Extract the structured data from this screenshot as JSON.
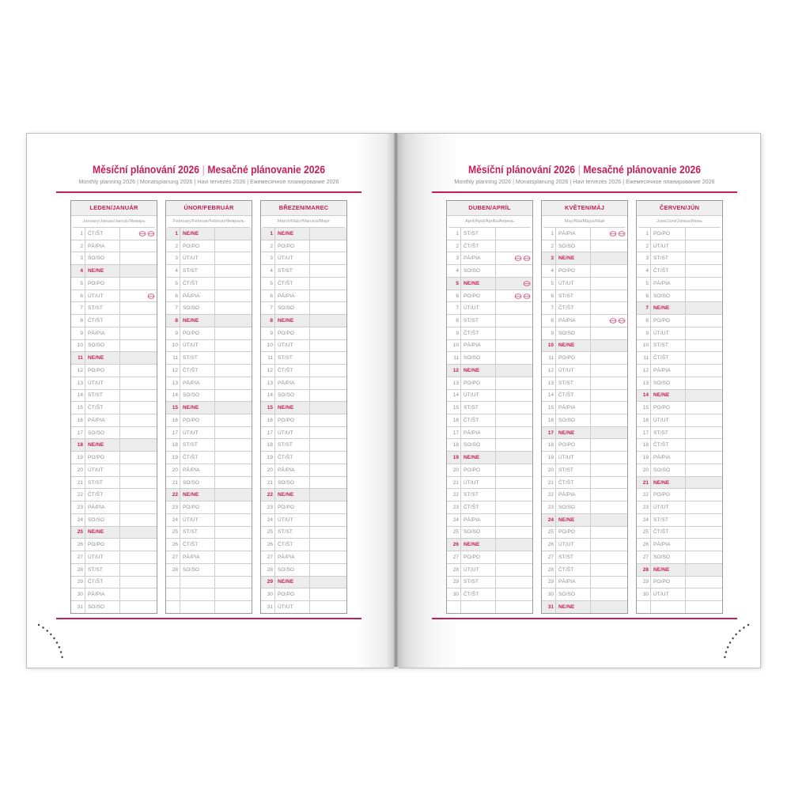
{
  "header": {
    "title_cz": "Měsíční plánování 2026",
    "title_divider": "|",
    "title_sk": "Mesačné plánovanie 2026",
    "subtitle": "Monthly planning 2026 | Monatsplanung 2026 | Havi tervezés 2026 | Ежемесячное планирование 2026"
  },
  "colors": {
    "accent": "#c41e56",
    "holiday_icon": "#d4537a",
    "sunday_row_bg": "#ececec",
    "grid_line": "#cdcdcd",
    "table_border": "#9b9b9b",
    "weekday_text": "#8d8d8d",
    "month_header_bg": "#efefef"
  },
  "day_abbreviations": {
    "monday": "PO/PO",
    "tuesday": "ÚT/UT",
    "wednesday": "ST/ST",
    "thursday": "ČT/ŠT",
    "friday": "PÁ/PIA",
    "saturday": "SO/SO",
    "sunday": "NE/NE"
  },
  "row_format": [
    "day_of_month",
    "day_abbreviation_cz_sk",
    "is_sunday",
    "holiday_icon_count"
  ],
  "months": [
    {
      "name": "LEDEN/JANUÁR",
      "subtitle": "January/Januar/Január/Январь",
      "filler_rows": 0,
      "rows": [
        [
          1,
          "ČT/ŠT",
          0,
          2
        ],
        [
          2,
          "PÁ/PIA",
          0,
          0
        ],
        [
          3,
          "SO/SO",
          0,
          0
        ],
        [
          4,
          "NE/NE",
          1,
          0
        ],
        [
          5,
          "PO/PO",
          0,
          0
        ],
        [
          6,
          "ÚT/UT",
          0,
          1
        ],
        [
          7,
          "ST/ST",
          0,
          0
        ],
        [
          8,
          "ČT/ŠT",
          0,
          0
        ],
        [
          9,
          "PÁ/PIA",
          0,
          0
        ],
        [
          10,
          "SO/SO",
          0,
          0
        ],
        [
          11,
          "NE/NE",
          1,
          0
        ],
        [
          12,
          "PO/PO",
          0,
          0
        ],
        [
          13,
          "ÚT/UT",
          0,
          0
        ],
        [
          14,
          "ST/ST",
          0,
          0
        ],
        [
          15,
          "ČT/ŠT",
          0,
          0
        ],
        [
          16,
          "PÁ/PIA",
          0,
          0
        ],
        [
          17,
          "SO/SO",
          0,
          0
        ],
        [
          18,
          "NE/NE",
          1,
          0
        ],
        [
          19,
          "PO/PO",
          0,
          0
        ],
        [
          20,
          "ÚT/UT",
          0,
          0
        ],
        [
          21,
          "ST/ST",
          0,
          0
        ],
        [
          22,
          "ČT/ŠT",
          0,
          0
        ],
        [
          23,
          "PÁ/PIA",
          0,
          0
        ],
        [
          24,
          "SO/SO",
          0,
          0
        ],
        [
          25,
          "NE/NE",
          1,
          0
        ],
        [
          26,
          "PO/PO",
          0,
          0
        ],
        [
          27,
          "ÚT/UT",
          0,
          0
        ],
        [
          28,
          "ST/ST",
          0,
          0
        ],
        [
          29,
          "ČT/ŠT",
          0,
          0
        ],
        [
          30,
          "PÁ/PIA",
          0,
          0
        ],
        [
          31,
          "SO/SO",
          0,
          0
        ]
      ]
    },
    {
      "name": "ÚNOR/FEBRUÁR",
      "subtitle": "February/Februar/Február/Февраль",
      "filler_rows": 3,
      "rows": [
        [
          1,
          "NE/NE",
          1,
          0
        ],
        [
          2,
          "PO/PO",
          0,
          0
        ],
        [
          3,
          "ÚT/UT",
          0,
          0
        ],
        [
          4,
          "ST/ST",
          0,
          0
        ],
        [
          5,
          "ČT/ŠT",
          0,
          0
        ],
        [
          6,
          "PÁ/PIA",
          0,
          0
        ],
        [
          7,
          "SO/SO",
          0,
          0
        ],
        [
          8,
          "NE/NE",
          1,
          0
        ],
        [
          9,
          "PO/PO",
          0,
          0
        ],
        [
          10,
          "ÚT/UT",
          0,
          0
        ],
        [
          11,
          "ST/ST",
          0,
          0
        ],
        [
          12,
          "ČT/ŠT",
          0,
          0
        ],
        [
          13,
          "PÁ/PIA",
          0,
          0
        ],
        [
          14,
          "SO/SO",
          0,
          0
        ],
        [
          15,
          "NE/NE",
          1,
          0
        ],
        [
          16,
          "PO/PO",
          0,
          0
        ],
        [
          17,
          "ÚT/UT",
          0,
          0
        ],
        [
          18,
          "ST/ST",
          0,
          0
        ],
        [
          19,
          "ČT/ŠT",
          0,
          0
        ],
        [
          20,
          "PÁ/PIA",
          0,
          0
        ],
        [
          21,
          "SO/SO",
          0,
          0
        ],
        [
          22,
          "NE/NE",
          1,
          0
        ],
        [
          23,
          "PO/PO",
          0,
          0
        ],
        [
          24,
          "ÚT/UT",
          0,
          0
        ],
        [
          25,
          "ST/ST",
          0,
          0
        ],
        [
          26,
          "ČT/ŠT",
          0,
          0
        ],
        [
          27,
          "PÁ/PIA",
          0,
          0
        ],
        [
          28,
          "SO/SO",
          0,
          0
        ]
      ]
    },
    {
      "name": "BŘEZEN/MAREC",
      "subtitle": "March/März/Március/Март",
      "filler_rows": 0,
      "rows": [
        [
          1,
          "NE/NE",
          1,
          0
        ],
        [
          2,
          "PO/PO",
          0,
          0
        ],
        [
          3,
          "ÚT/UT",
          0,
          0
        ],
        [
          4,
          "ST/ST",
          0,
          0
        ],
        [
          5,
          "ČT/ŠT",
          0,
          0
        ],
        [
          6,
          "PÁ/PIA",
          0,
          0
        ],
        [
          7,
          "SO/SO",
          0,
          0
        ],
        [
          8,
          "NE/NE",
          1,
          0
        ],
        [
          9,
          "PO/PO",
          0,
          0
        ],
        [
          10,
          "ÚT/UT",
          0,
          0
        ],
        [
          11,
          "ST/ST",
          0,
          0
        ],
        [
          12,
          "ČT/ŠT",
          0,
          0
        ],
        [
          13,
          "PÁ/PIA",
          0,
          0
        ],
        [
          14,
          "SO/SO",
          0,
          0
        ],
        [
          15,
          "NE/NE",
          1,
          0
        ],
        [
          16,
          "PO/PO",
          0,
          0
        ],
        [
          17,
          "ÚT/UT",
          0,
          0
        ],
        [
          18,
          "ST/ST",
          0,
          0
        ],
        [
          19,
          "ČT/ŠT",
          0,
          0
        ],
        [
          20,
          "PÁ/PIA",
          0,
          0
        ],
        [
          21,
          "SO/SO",
          0,
          0
        ],
        [
          22,
          "NE/NE",
          1,
          0
        ],
        [
          23,
          "PO/PO",
          0,
          0
        ],
        [
          24,
          "ÚT/UT",
          0,
          0
        ],
        [
          25,
          "ST/ST",
          0,
          0
        ],
        [
          26,
          "ČT/ŠT",
          0,
          0
        ],
        [
          27,
          "PÁ/PIA",
          0,
          0
        ],
        [
          28,
          "SO/SO",
          0,
          0
        ],
        [
          29,
          "NE/NE",
          1,
          0
        ],
        [
          30,
          "PO/PO",
          0,
          0
        ],
        [
          31,
          "ÚT/UT",
          0,
          0
        ]
      ]
    },
    {
      "name": "DUBEN/APRÍL",
      "subtitle": "April/April/Április/Апрель",
      "filler_rows": 1,
      "rows": [
        [
          1,
          "ST/ST",
          0,
          0
        ],
        [
          2,
          "ČT/ŠT",
          0,
          0
        ],
        [
          3,
          "PÁ/PIA",
          0,
          2
        ],
        [
          4,
          "SO/SO",
          0,
          0
        ],
        [
          5,
          "NE/NE",
          1,
          1
        ],
        [
          6,
          "PO/PO",
          0,
          2
        ],
        [
          7,
          "ÚT/UT",
          0,
          0
        ],
        [
          8,
          "ST/ST",
          0,
          0
        ],
        [
          9,
          "ČT/ŠT",
          0,
          0
        ],
        [
          10,
          "PÁ/PIA",
          0,
          0
        ],
        [
          11,
          "SO/SO",
          0,
          0
        ],
        [
          12,
          "NE/NE",
          1,
          0
        ],
        [
          13,
          "PO/PO",
          0,
          0
        ],
        [
          14,
          "ÚT/UT",
          0,
          0
        ],
        [
          15,
          "ST/ST",
          0,
          0
        ],
        [
          16,
          "ČT/ŠT",
          0,
          0
        ],
        [
          17,
          "PÁ/PIA",
          0,
          0
        ],
        [
          18,
          "SO/SO",
          0,
          0
        ],
        [
          19,
          "NE/NE",
          1,
          0
        ],
        [
          20,
          "PO/PO",
          0,
          0
        ],
        [
          21,
          "ÚT/UT",
          0,
          0
        ],
        [
          22,
          "ST/ST",
          0,
          0
        ],
        [
          23,
          "ČT/ŠT",
          0,
          0
        ],
        [
          24,
          "PÁ/PIA",
          0,
          0
        ],
        [
          25,
          "SO/SO",
          0,
          0
        ],
        [
          26,
          "NE/NE",
          1,
          0
        ],
        [
          27,
          "PO/PO",
          0,
          0
        ],
        [
          28,
          "ÚT/UT",
          0,
          0
        ],
        [
          29,
          "ST/ST",
          0,
          0
        ],
        [
          30,
          "ČT/ŠT",
          0,
          0
        ]
      ]
    },
    {
      "name": "KVĚTEN/MÁJ",
      "subtitle": "May/Mai/Május/Май",
      "filler_rows": 0,
      "rows": [
        [
          1,
          "PÁ/PIA",
          0,
          2
        ],
        [
          2,
          "SO/SO",
          0,
          0
        ],
        [
          3,
          "NE/NE",
          1,
          0
        ],
        [
          4,
          "PO/PO",
          0,
          0
        ],
        [
          5,
          "ÚT/UT",
          0,
          0
        ],
        [
          6,
          "ST/ST",
          0,
          0
        ],
        [
          7,
          "ČT/ŠT",
          0,
          0
        ],
        [
          8,
          "PÁ/PIA",
          0,
          2
        ],
        [
          9,
          "SO/SO",
          0,
          0
        ],
        [
          10,
          "NE/NE",
          1,
          0
        ],
        [
          11,
          "PO/PO",
          0,
          0
        ],
        [
          12,
          "ÚT/UT",
          0,
          0
        ],
        [
          13,
          "ST/ST",
          0,
          0
        ],
        [
          14,
          "ČT/ŠT",
          0,
          0
        ],
        [
          15,
          "PÁ/PIA",
          0,
          0
        ],
        [
          16,
          "SO/SO",
          0,
          0
        ],
        [
          17,
          "NE/NE",
          1,
          0
        ],
        [
          18,
          "PO/PO",
          0,
          0
        ],
        [
          19,
          "ÚT/UT",
          0,
          0
        ],
        [
          20,
          "ST/ST",
          0,
          0
        ],
        [
          21,
          "ČT/ŠT",
          0,
          0
        ],
        [
          22,
          "PÁ/PIA",
          0,
          0
        ],
        [
          23,
          "SO/SO",
          0,
          0
        ],
        [
          24,
          "NE/NE",
          1,
          0
        ],
        [
          25,
          "PO/PO",
          0,
          0
        ],
        [
          26,
          "ÚT/UT",
          0,
          0
        ],
        [
          27,
          "ST/ST",
          0,
          0
        ],
        [
          28,
          "ČT/ŠT",
          0,
          0
        ],
        [
          29,
          "PÁ/PIA",
          0,
          0
        ],
        [
          30,
          "SO/SO",
          0,
          0
        ],
        [
          31,
          "NE/NE",
          1,
          0
        ]
      ]
    },
    {
      "name": "ČERVEN/JÚN",
      "subtitle": "June/Juni/Június/Июнь",
      "filler_rows": 1,
      "rows": [
        [
          1,
          "PO/PO",
          0,
          0
        ],
        [
          2,
          "ÚT/UT",
          0,
          0
        ],
        [
          3,
          "ST/ST",
          0,
          0
        ],
        [
          4,
          "ČT/ŠT",
          0,
          0
        ],
        [
          5,
          "PÁ/PIA",
          0,
          0
        ],
        [
          6,
          "SO/SO",
          0,
          0
        ],
        [
          7,
          "NE/NE",
          1,
          0
        ],
        [
          8,
          "PO/PO",
          0,
          0
        ],
        [
          9,
          "ÚT/UT",
          0,
          0
        ],
        [
          10,
          "ST/ST",
          0,
          0
        ],
        [
          11,
          "ČT/ŠT",
          0,
          0
        ],
        [
          12,
          "PÁ/PIA",
          0,
          0
        ],
        [
          13,
          "SO/SO",
          0,
          0
        ],
        [
          14,
          "NE/NE",
          1,
          0
        ],
        [
          15,
          "PO/PO",
          0,
          0
        ],
        [
          16,
          "ÚT/UT",
          0,
          0
        ],
        [
          17,
          "ST/ST",
          0,
          0
        ],
        [
          18,
          "ČT/ŠT",
          0,
          0
        ],
        [
          19,
          "PÁ/PIA",
          0,
          0
        ],
        [
          20,
          "SO/SO",
          0,
          0
        ],
        [
          21,
          "NE/NE",
          1,
          0
        ],
        [
          22,
          "PO/PO",
          0,
          0
        ],
        [
          23,
          "ÚT/UT",
          0,
          0
        ],
        [
          24,
          "ST/ST",
          0,
          0
        ],
        [
          25,
          "ČT/ŠT",
          0,
          0
        ],
        [
          26,
          "PÁ/PIA",
          0,
          0
        ],
        [
          27,
          "SO/SO",
          0,
          0
        ],
        [
          28,
          "NE/NE",
          1,
          0
        ],
        [
          29,
          "PO/PO",
          0,
          0
        ],
        [
          30,
          "ÚT/UT",
          0,
          0
        ]
      ]
    }
  ]
}
